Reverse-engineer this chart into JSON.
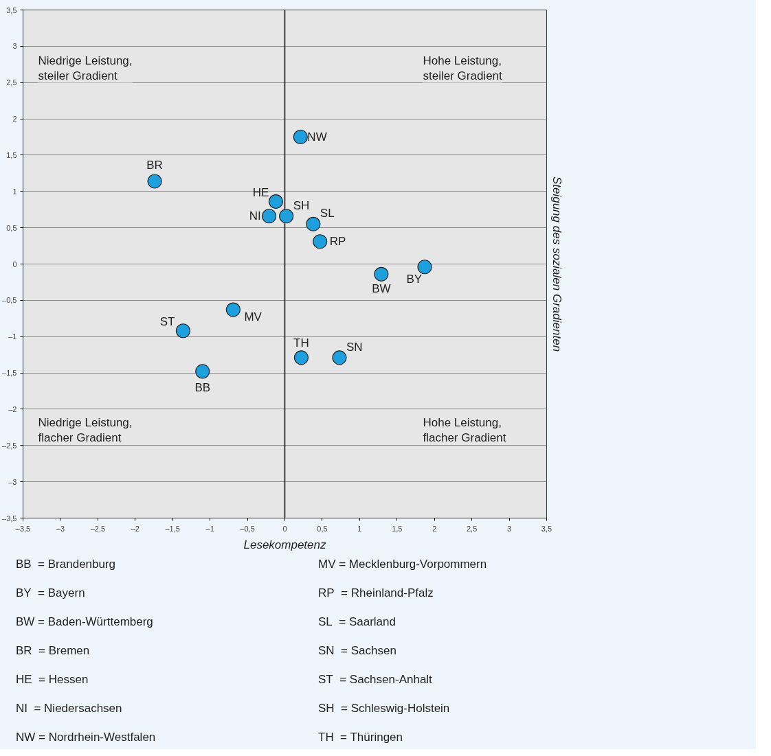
{
  "chart_data": {
    "type": "scatter",
    "xlabel": "Lesekompetenz",
    "ylabel": "Steigung des sozialen Gradienten",
    "xlim": [
      -3.5,
      3.5
    ],
    "ylim": [
      -3.5,
      3.5
    ],
    "xticks": [
      {
        "value": -3.5,
        "label": "–3,5"
      },
      {
        "value": -3,
        "label": "–3"
      },
      {
        "value": -2.5,
        "label": "–2,5"
      },
      {
        "value": -2,
        "label": "–2"
      },
      {
        "value": -1.5,
        "label": "–1,5"
      },
      {
        "value": -1,
        "label": "–1"
      },
      {
        "value": -0.5,
        "label": "–0,5"
      },
      0,
      {
        "value": 0.5,
        "label": "0,5"
      },
      1,
      {
        "value": 1.5,
        "label": "1,5"
      },
      2,
      {
        "value": 2.5,
        "label": "2,5"
      },
      3,
      {
        "value": 3.5,
        "label": "3,5"
      }
    ],
    "yticks": [
      {
        "value": -3.5,
        "label": "–3,5"
      },
      {
        "value": -3,
        "label": "–3"
      },
      {
        "value": -2.5,
        "label": "–2,5"
      },
      {
        "value": -2,
        "label": "–2"
      },
      {
        "value": -1.5,
        "label": "–1,5"
      },
      {
        "value": -1,
        "label": "–1"
      },
      {
        "value": -0.5,
        "label": "–0,5"
      },
      0,
      {
        "value": 0.5,
        "label": "0,5"
      },
      1,
      {
        "value": 1.5,
        "label": "1,5"
      },
      2,
      {
        "value": 2.5,
        "label": "2,5"
      },
      3,
      {
        "value": 3.5,
        "label": "3,5"
      }
    ],
    "grid": "y",
    "legend": false,
    "marker": "circle",
    "ref_lines": [
      {
        "axis": "x",
        "value": 0
      }
    ],
    "series": [
      {
        "name": "NW",
        "color": "#1ea0de",
        "x": [
          0.21
        ],
        "values": [
          1.75
        ]
      },
      {
        "name": "BR",
        "color": "#1ea0de",
        "x": [
          -1.74
        ],
        "values": [
          1.14
        ]
      },
      {
        "name": "HE",
        "color": "#1ea0de",
        "x": [
          -0.12
        ],
        "values": [
          0.86
        ]
      },
      {
        "name": "NI",
        "color": "#1ea0de",
        "x": [
          -0.21
        ],
        "values": [
          0.66
        ]
      },
      {
        "name": "SH",
        "color": "#1ea0de",
        "x": [
          0.02
        ],
        "values": [
          0.66
        ]
      },
      {
        "name": "SL",
        "color": "#1ea0de",
        "x": [
          0.38
        ],
        "values": [
          0.55
        ]
      },
      {
        "name": "RP",
        "color": "#1ea0de",
        "x": [
          0.47
        ],
        "values": [
          0.31
        ]
      },
      {
        "name": "BW",
        "color": "#1ea0de",
        "x": [
          1.29
        ],
        "values": [
          -0.14
        ]
      },
      {
        "name": "BY",
        "color": "#1ea0de",
        "x": [
          1.87
        ],
        "values": [
          -0.04
        ]
      },
      {
        "name": "MV",
        "color": "#1ea0de",
        "x": [
          -0.69
        ],
        "values": [
          -0.63
        ]
      },
      {
        "name": "ST",
        "color": "#1ea0de",
        "x": [
          -1.36
        ],
        "values": [
          -0.92
        ]
      },
      {
        "name": "BB",
        "color": "#1ea0de",
        "x": [
          -1.1
        ],
        "values": [
          -1.48
        ]
      },
      {
        "name": "TH",
        "color": "#1ea0de",
        "x": [
          0.22
        ],
        "values": [
          -1.29
        ]
      },
      {
        "name": "SN",
        "color": "#1ea0de",
        "x": [
          0.73
        ],
        "values": [
          -1.29
        ]
      }
    ],
    "annotations": [
      "Niedrige Leistung,\nsteiler Gradient",
      "Hohe Leistung,\nsteiler Gradient",
      "Niedrige Leistung,\nflacher Gradient",
      "Hohe Leistung,\nflacher Gradient",
      "BB  = Brandenburg",
      "BY  = Bayern",
      "BW = Baden-Württemberg",
      "BR  = Bremen",
      "HE  = Hessen",
      "NI   = Niedersachsen",
      "NW = Nordrhein-Westfalen",
      "MV = Mecklenburg-Vorpommern",
      "RP  = Rheinland-Pfalz",
      "SL   = Saarland",
      "SN  = Sachsen",
      "ST  = Sachsen-Anhalt",
      "SH  = Schleswig-Holstein",
      "TH  = Thüringen"
    ]
  }
}
